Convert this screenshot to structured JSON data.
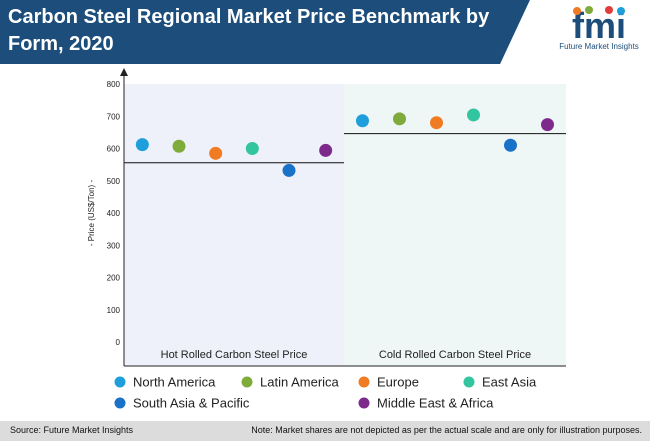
{
  "header": {
    "title": "Carbon Steel Regional Market Price Benchmark by Form, 2020",
    "logo_letters": "fmi",
    "logo_caption": "Future Market Insights"
  },
  "colors": {
    "header_bg": "#1d4e7b",
    "panel_left_bg": "#eef1f9",
    "panel_right_bg": "#eef6f6"
  },
  "chart_data": {
    "type": "scatter",
    "ylabel": "- Price (US$/Ton) -",
    "ylim": [
      0,
      800
    ],
    "yticks": [
      0,
      100,
      200,
      300,
      400,
      500,
      600,
      700,
      800
    ],
    "grid": false,
    "legend_position": "bottom",
    "panels": [
      {
        "label": "Hot Rolled Carbon Steel Price",
        "average": 556,
        "values": [
          612,
          607,
          585,
          600,
          532,
          594
        ]
      },
      {
        "label": "Cold Rolled Carbon Steel Price",
        "average": 646,
        "values": [
          686,
          692,
          680,
          704,
          610,
          674
        ]
      }
    ],
    "series": [
      {
        "name": "North America",
        "color": "#1e9fdc"
      },
      {
        "name": "Latin America",
        "color": "#7fab3c"
      },
      {
        "name": "Europe",
        "color": "#f07b22"
      },
      {
        "name": "East Asia",
        "color": "#33c4a0"
      },
      {
        "name": "South Asia & Pacific",
        "color": "#1a71c8"
      },
      {
        "name": "Middle East & Africa",
        "color": "#7d2a8c"
      }
    ]
  },
  "footer": {
    "source": "Source: Future Market Insights",
    "note": "Note: Market shares are not depicted as per the actual scale and are only for illustration purposes."
  }
}
